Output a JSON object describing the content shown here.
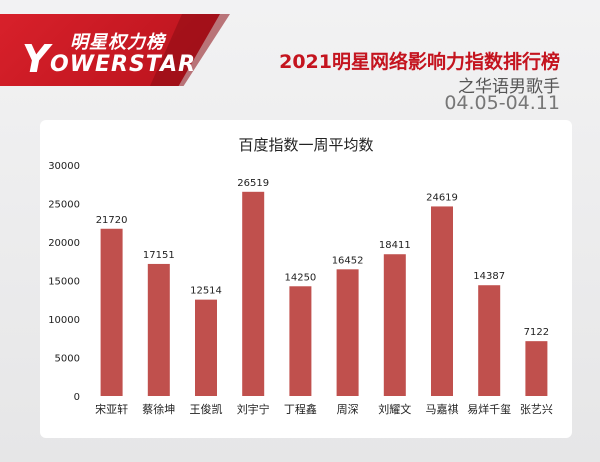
{
  "header": {
    "logo_cn": "明星权力榜",
    "logo_y": "Y",
    "logo_en": "OWERSTAR",
    "title": "2021明星网络影响力指数排行榜",
    "subtitle": "之华语男歌手",
    "date_range": "04.05-04.11"
  },
  "colors": {
    "brand_red": "#c4141f",
    "bar": "#c0504d"
  },
  "chart_data": {
    "type": "bar",
    "title": "百度指数一周平均数",
    "categories": [
      "宋亚轩",
      "蔡徐坤",
      "王俊凯",
      "刘宇宁",
      "丁程鑫",
      "周深",
      "刘耀文",
      "马嘉祺",
      "易烊千玺",
      "张艺兴"
    ],
    "values": [
      21720,
      17151,
      12514,
      26519,
      14250,
      16452,
      18411,
      24619,
      14387,
      7122
    ],
    "value_labels": [
      "21720",
      "17151",
      "12514",
      "26519",
      "14250",
      "16452",
      "18411",
      "24619",
      "14387",
      "7122"
    ],
    "yticks": [
      "0",
      "5000",
      "10000",
      "15000",
      "20000",
      "25000",
      "30000"
    ],
    "ylim": [
      0,
      30000
    ],
    "grid": false,
    "legend": "none"
  }
}
